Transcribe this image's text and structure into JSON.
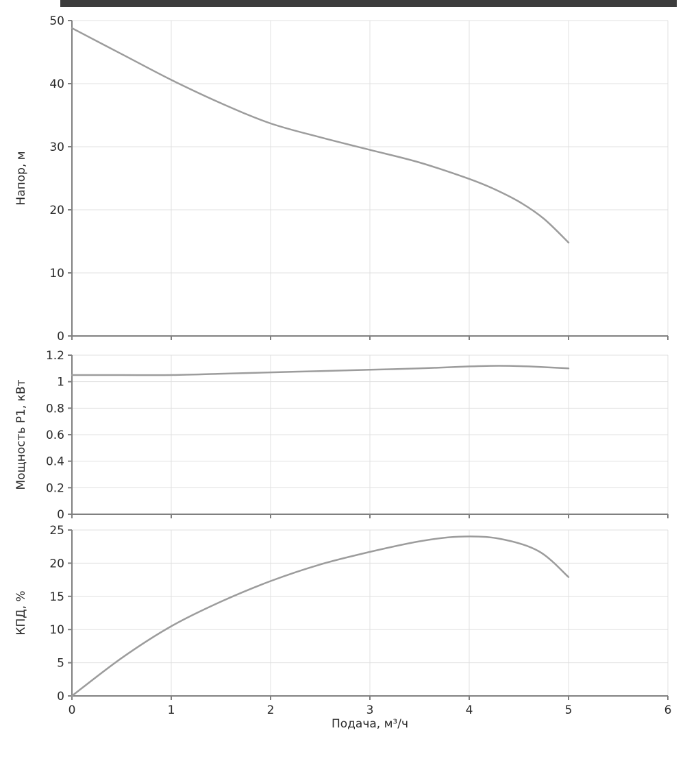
{
  "header_bar": {
    "color": "#3c3c3c"
  },
  "colors": {
    "curve": "#9c9c9c",
    "grid": "#e0e0e0",
    "axis": "#808080",
    "text": "#2b2b2b",
    "background": "#ffffff"
  },
  "chart_data": [
    {
      "type": "line",
      "name": "head-curve",
      "ylabel": "Напор, м",
      "ylim": [
        0,
        50
      ],
      "y_ticks": [
        0,
        10,
        20,
        30,
        40,
        50
      ],
      "xlim": [
        0,
        6
      ],
      "x_ticks": [
        0,
        1,
        2,
        3,
        4,
        5,
        6
      ],
      "show_x_tick_labels": false,
      "grid": true,
      "legend": "none",
      "x": [
        0,
        0.5,
        1,
        1.5,
        2,
        2.5,
        3,
        3.5,
        4,
        4.25,
        4.5,
        4.75,
        5
      ],
      "y": [
        48.8,
        44.7,
        40.6,
        36.9,
        33.7,
        31.5,
        29.5,
        27.5,
        24.9,
        23.3,
        21.3,
        18.6,
        14.8
      ]
    },
    {
      "type": "line",
      "name": "power-curve",
      "ylabel": "Мощность P1, кВт",
      "ylim": [
        0,
        1.2
      ],
      "y_ticks": [
        0,
        0.2,
        0.4,
        0.6,
        0.8,
        1,
        1.2
      ],
      "xlim": [
        0,
        6
      ],
      "x_ticks": [
        0,
        1,
        2,
        3,
        4,
        5,
        6
      ],
      "show_x_tick_labels": false,
      "grid": true,
      "legend": "none",
      "x": [
        0,
        0.5,
        1,
        1.5,
        2,
        2.5,
        3,
        3.5,
        4,
        4.3,
        4.6,
        5
      ],
      "y": [
        1.05,
        1.05,
        1.05,
        1.06,
        1.07,
        1.08,
        1.09,
        1.1,
        1.115,
        1.12,
        1.115,
        1.1
      ]
    },
    {
      "type": "line",
      "name": "efficiency-curve",
      "ylabel": "КПД, %",
      "xlabel": "Подача, м³/ч",
      "ylim": [
        0,
        25
      ],
      "y_ticks": [
        0,
        5,
        10,
        15,
        20,
        25
      ],
      "xlim": [
        0,
        6
      ],
      "x_ticks": [
        0,
        1,
        2,
        3,
        4,
        5,
        6
      ],
      "x_tick_labels": [
        "0",
        "1",
        "2",
        "3",
        "4",
        "5",
        "6"
      ],
      "show_x_tick_labels": true,
      "grid": true,
      "legend": "none",
      "x": [
        0,
        0.5,
        1,
        1.5,
        2,
        2.5,
        3,
        3.5,
        3.9,
        4.3,
        4.7,
        5
      ],
      "y": [
        0,
        5.7,
        10.5,
        14.2,
        17.3,
        19.8,
        21.7,
        23.3,
        24,
        23.7,
        21.8,
        17.9
      ]
    }
  ]
}
